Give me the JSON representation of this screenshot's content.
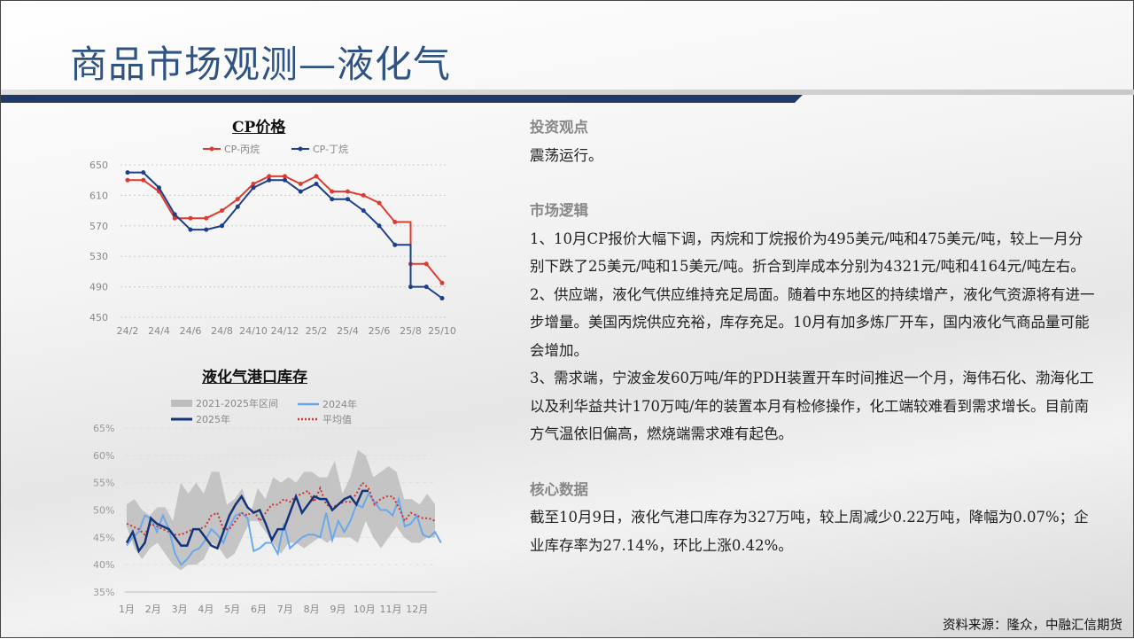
{
  "header": {
    "title": "商品市场观测—液化气"
  },
  "chart_data": [
    {
      "type": "line",
      "title": "CP价格",
      "ylim": [
        450,
        650
      ],
      "yticks": [
        450,
        490,
        530,
        570,
        610,
        650
      ],
      "categories": [
        "24/2",
        "24/3",
        "24/4",
        "24/5",
        "24/6",
        "24/7",
        "24/8",
        "24/9",
        "24/10",
        "24/11",
        "24/12",
        "25/1",
        "25/2",
        "25/3",
        "25/4",
        "25/5",
        "25/6",
        "25/7",
        "25/8",
        "25/9",
        "25/10"
      ],
      "xtick_labels": [
        "24/2",
        "24/4",
        "24/6",
        "24/8",
        "24/10",
        "24/12",
        "25/2",
        "25/4",
        "25/6",
        "25/8",
        "25/10"
      ],
      "grid": true,
      "legend": "top",
      "series": [
        {
          "name": "CP-丙烷",
          "color": "#e03a2f",
          "values": [
            630,
            630,
            615,
            580,
            580,
            580,
            590,
            605,
            625,
            635,
            635,
            625,
            635,
            615,
            615,
            610,
            600,
            575,
            520,
            520,
            495
          ]
        },
        {
          "name": "CP-丁烷",
          "color": "#1c3f8c",
          "values": [
            640,
            640,
            620,
            585,
            565,
            565,
            570,
            595,
            620,
            630,
            630,
            615,
            625,
            605,
            605,
            590,
            570,
            545,
            490,
            490,
            475
          ]
        }
      ]
    },
    {
      "type": "line",
      "title": "液化气港口库存",
      "ylim": [
        35,
        65
      ],
      "yticks": [
        "35%",
        "40%",
        "45%",
        "50%",
        "55%",
        "60%",
        "65%"
      ],
      "xtick_labels": [
        "1月",
        "2月",
        "3月",
        "4月",
        "5月",
        "6月",
        "7月",
        "8月",
        "9月",
        "10月",
        "11月",
        "12月"
      ],
      "x_unit": "week",
      "grid": true,
      "legend": "top",
      "band": {
        "name": "2021-2025年区间",
        "color": "#bdbdbd",
        "upper": [
          51,
          52,
          50,
          49,
          50.5,
          50.5,
          48,
          55,
          53,
          55,
          53,
          57,
          57,
          51,
          52,
          54,
          49,
          54,
          52,
          56,
          55,
          56,
          55,
          57,
          57,
          56,
          56,
          59,
          53,
          56,
          61,
          60,
          56,
          57,
          58,
          57,
          52,
          52,
          51,
          53,
          51
        ],
        "lower": [
          47,
          43,
          41,
          43,
          44,
          42,
          40,
          39,
          40,
          40,
          41,
          44,
          43,
          41,
          42,
          45,
          48,
          48,
          46,
          44,
          42,
          44,
          44,
          43,
          44,
          45,
          44,
          45,
          45,
          45,
          44,
          48,
          45,
          43,
          45,
          47,
          45,
          44,
          44,
          45,
          45
        ]
      },
      "series": [
        {
          "name": "2024年",
          "color": "#6aa8ec",
          "style": "solid",
          "values": [
            43.5,
            45,
            46,
            49,
            48.5,
            46,
            49,
            46.5,
            42,
            40,
            41,
            42.5,
            43,
            44.5,
            46.5,
            45.5,
            44,
            47,
            49,
            49.5,
            48.5,
            42.5,
            43,
            44,
            44,
            42,
            47.5,
            43,
            44,
            45,
            45.5,
            45.5,
            45,
            49.5,
            44.5,
            48,
            46,
            48,
            51,
            50.5,
            53,
            51.5,
            50,
            50,
            49,
            52,
            47,
            47.5,
            49,
            45.5,
            45,
            46,
            44
          ]
        },
        {
          "name": "2025年",
          "color": "#13347a",
          "style": "solid",
          "values": [
            44,
            46,
            42.5,
            44,
            48.5,
            47.5,
            47,
            46.5,
            45,
            43.5,
            43.5,
            46.5,
            46.5,
            45,
            43.5,
            43,
            46,
            49,
            51,
            52.5,
            50.5,
            49.5,
            50,
            47.5,
            44.5,
            46.5,
            46.5,
            49.5,
            52.5,
            49.5,
            51,
            52.5,
            52,
            52,
            50,
            51,
            52,
            52.5,
            51,
            53.5,
            53.5
          ]
        },
        {
          "name": "平均值",
          "color": "#d0342c",
          "style": "dotted",
          "values": [
            47.5,
            47,
            46.5,
            45.5,
            47.5,
            47,
            46.5,
            46,
            45.5,
            45.5,
            46,
            46.5,
            46.5,
            47,
            49,
            49.5,
            46.5,
            46.5,
            48,
            49.5,
            49,
            50,
            48,
            49.5,
            51,
            51,
            52,
            51.5,
            52.5,
            53,
            53.5,
            51.5,
            54,
            51,
            50.5,
            51,
            51.5,
            51.5,
            53,
            55,
            54,
            51,
            52,
            52.5,
            52.5,
            50.5,
            48,
            49.5,
            49,
            48.5,
            48.5,
            48
          ]
        }
      ]
    }
  ],
  "panel": {
    "invest_heading": "投资观点",
    "invest_text": "震荡运行。",
    "logic_heading": "市场逻辑",
    "logic_1": "1、10月CP报价大幅下调，丙烷和丁烷报价为495美元/吨和475美元/吨，较上一月分别下跌了25美元/吨和15美元/吨。折合到岸成本分别为4321元/吨和4164元/吨左右。",
    "logic_2": "2、供应端，液化气供应维持充足局面。随着中东地区的持续增产，液化气资源将有进一步增量。美国丙烷供应充裕，库存充足。10月有加多炼厂开车，国内液化气商品量可能会增加。",
    "logic_3": "3、需求端，宁波金发60万吨/年的PDH装置开车时间推迟一个月，海伟石化、渤海化工以及利华益共计170万吨/年的装置本月有检修操作，化工端较难看到需求增长。目前南方气温依旧偏高，燃烧端需求难有起色。",
    "core_heading": "核心数据",
    "core_text": "截至10月9日，液化气港口库存为327万吨，较上周减少0.22万吨，降幅为0.07%；企业库存率为27.14%，环比上涨0.42%。"
  },
  "footer": {
    "source": "资料来源：隆众，中融汇信期货"
  }
}
